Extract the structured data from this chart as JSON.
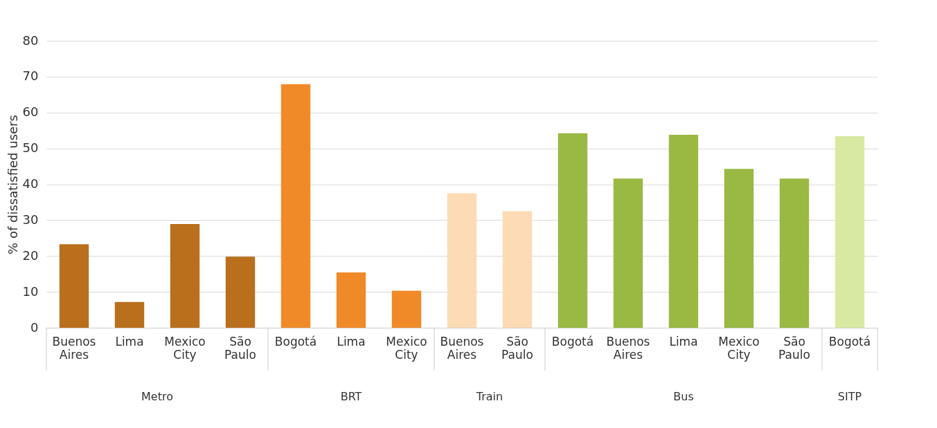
{
  "chart_data": {
    "type": "bar",
    "ylabel": "% of dissatisfied users",
    "categories": [
      "Buenos Aires",
      "Lima",
      "Mexico City",
      "São Paulo",
      "Bogotá",
      "Lima",
      "Mexico City",
      "Buenos Aires",
      "São Paulo",
      "Bogotá",
      "Buenos Aires",
      "Lima",
      "Mexico City",
      "São Paulo",
      "Bogotá"
    ],
    "series": [
      {
        "color": "#b96f1c",
        "values": [
          23.3,
          7.2,
          28.9,
          19.8,
          null,
          null,
          null,
          null,
          null,
          null,
          null,
          null,
          null,
          null,
          null
        ]
      },
      {
        "color": "#f08a28",
        "values": [
          null,
          null,
          null,
          null,
          67.9,
          15.4,
          10.3,
          null,
          null,
          null,
          null,
          null,
          null,
          null,
          null
        ]
      },
      {
        "color": "#fddbb5",
        "values": [
          null,
          null,
          null,
          null,
          null,
          null,
          null,
          37.5,
          32.5,
          null,
          null,
          null,
          null,
          null,
          null
        ]
      },
      {
        "color": "#99b943",
        "values": [
          null,
          null,
          null,
          null,
          null,
          null,
          null,
          null,
          null,
          54.2,
          41.6,
          53.8,
          44.3,
          41.6,
          null
        ]
      },
      {
        "color": "#d8eaa2",
        "values": [
          null,
          null,
          null,
          null,
          null,
          null,
          null,
          null,
          null,
          null,
          null,
          null,
          null,
          null,
          53.4
        ]
      }
    ],
    "annotations": [
      "Metro",
      "BRT",
      "Train",
      "Bus",
      "SITP"
    ],
    "ylim": [
      0,
      80
    ],
    "yticks": [
      0,
      10,
      20,
      30,
      40,
      50,
      60,
      70,
      80
    ],
    "grid": "y",
    "legend": false
  }
}
